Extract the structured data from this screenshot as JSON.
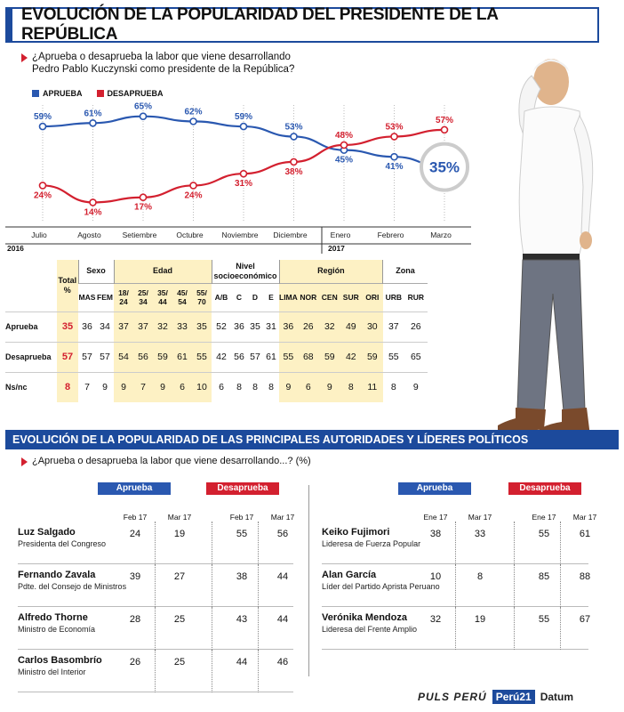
{
  "header": {
    "title": "EVOLUCIÓN DE LA POPULARIDAD DEL PRESIDENTE DE LA REPÚBLICA"
  },
  "question": {
    "line1": "¿Aprueba o desaprueba la labor que viene desarrollando",
    "line2": "Pedro Pablo Kuczynski como presidente de la República?"
  },
  "colors": {
    "aprueba": "#2a58b0",
    "desaprueba": "#d3202f",
    "brand": "#1c4a9c",
    "yellow": "#fdf1c4"
  },
  "chart_data": {
    "type": "line",
    "categories": [
      "Julio",
      "Agosto",
      "Setiembre",
      "Octubre",
      "Noviembre",
      "Diciembre",
      "Enero",
      "Febrero",
      "Marzo"
    ],
    "year_labels": [
      {
        "label": "2016",
        "at": "Julio"
      },
      {
        "label": "2017",
        "at": "Enero"
      }
    ],
    "series": [
      {
        "name": "APRUEBA",
        "values": [
          59,
          61,
          65,
          62,
          59,
          53,
          45,
          41,
          35
        ]
      },
      {
        "name": "DESAPRUEBA",
        "values": [
          24,
          14,
          17,
          24,
          31,
          38,
          48,
          53,
          57
        ]
      }
    ],
    "highlight": "35%",
    "ylim": [
      10,
      68
    ]
  },
  "table": {
    "group_headers": [
      "Total %",
      "Sexo",
      "Edad",
      "Nivel socioeconómico",
      "Región",
      "Zona"
    ],
    "sub_headers": [
      "MAS",
      "FEM",
      "18/ 24",
      "25/ 34",
      "35/ 44",
      "45/ 54",
      "55/ 70",
      "A/B",
      "C",
      "D",
      "E",
      "LIMA",
      "NOR",
      "CEN",
      "SUR",
      "ORI",
      "URB",
      "RUR"
    ],
    "rows": [
      {
        "label": "Aprueba",
        "total": "35",
        "values": [
          "36",
          "34",
          "37",
          "37",
          "32",
          "33",
          "35",
          "52",
          "36",
          "35",
          "31",
          "36",
          "26",
          "32",
          "49",
          "30",
          "37",
          "26"
        ]
      },
      {
        "label": "Desaprueba",
        "total": "57",
        "values": [
          "57",
          "57",
          "54",
          "56",
          "59",
          "61",
          "55",
          "42",
          "56",
          "57",
          "61",
          "55",
          "68",
          "59",
          "42",
          "59",
          "55",
          "65"
        ]
      },
      {
        "label": "Ns/nc",
        "total": "8",
        "values": [
          "7",
          "9",
          "9",
          "7",
          "9",
          "6",
          "10",
          "6",
          "8",
          "8",
          "8",
          "9",
          "6",
          "9",
          "8",
          "11",
          "8",
          "9"
        ]
      }
    ]
  },
  "section2": {
    "title": "EVOLUCIÓN DE LA POPULARIDAD DE LAS PRINCIPALES AUTORIDADES Y LÍDERES POLÍTICOS",
    "question": "¿Aprueba o desaprueba la labor que viene desarrollando...? (%)",
    "aprueba_label": "Aprueba",
    "desaprueba_label": "Desaprueba",
    "left": {
      "periods": [
        "Feb 17",
        "Mar 17",
        "Feb 17",
        "Mar 17"
      ],
      "people": [
        {
          "name": "Luz Salgado",
          "role": "Presidenta del Congreso",
          "values": [
            "24",
            "19",
            "55",
            "56"
          ]
        },
        {
          "name": "Fernando Zavala",
          "role": "Pdte. del Consejo de Ministros",
          "values": [
            "39",
            "27",
            "38",
            "44"
          ]
        },
        {
          "name": "Alfredo Thorne",
          "role": "Ministro de Economía",
          "values": [
            "28",
            "25",
            "43",
            "44"
          ]
        },
        {
          "name": "Carlos Basombrío",
          "role": "Ministro del Interior",
          "values": [
            "26",
            "25",
            "44",
            "46"
          ]
        }
      ]
    },
    "right": {
      "periods": [
        "Ene 17",
        "Mar 17",
        "Ene 17",
        "Mar 17"
      ],
      "people": [
        {
          "name": "Keiko Fujimori",
          "role": "Lideresa de Fuerza Popular",
          "values": [
            "38",
            "33",
            "55",
            "61"
          ]
        },
        {
          "name": "Alan García",
          "role": "Líder del Partido Aprista Peruano",
          "values": [
            "10",
            "8",
            "85",
            "88"
          ]
        },
        {
          "name": "Verónika Mendoza",
          "role": "Lideresa del Frente Amplio",
          "values": [
            "32",
            "19",
            "55",
            "67"
          ]
        }
      ]
    }
  },
  "footer": {
    "brand1": "PULS PERÚ",
    "brand2": "Perú21",
    "brand3": "Datum"
  }
}
